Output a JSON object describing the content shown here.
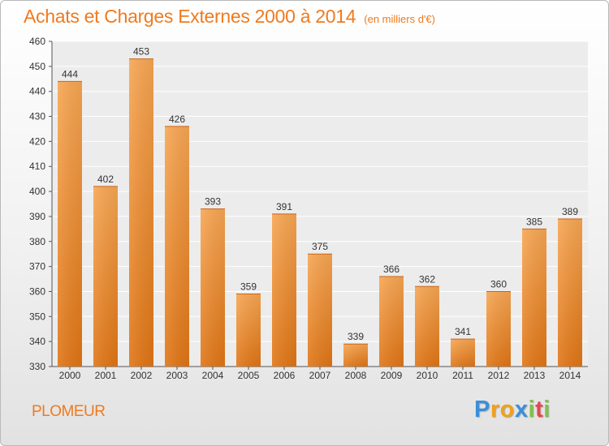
{
  "header": {
    "title": "Achats et Charges Externes 2000 à 2014",
    "subtitle": "(en milliers d'€)"
  },
  "footer": {
    "commune": "PLOMEUR",
    "logo": {
      "letters": [
        "P",
        "r",
        "o",
        "x",
        "i",
        "t",
        "i"
      ]
    }
  },
  "colors": {
    "accent": "#f07a1e",
    "bar_light": "#f7a653",
    "bar_dark": "#e07515",
    "logo": [
      "#3a8fd8",
      "#f0a01e",
      "#f0a01e",
      "#3a8fd8",
      "#7ec242",
      "#e8454e",
      "#7ec242"
    ]
  },
  "chart_data": {
    "type": "bar",
    "title": "Achats et Charges Externes 2000 à 2014",
    "subtitle": "(en milliers d'€)",
    "xlabel": "",
    "ylabel": "",
    "categories": [
      "2000",
      "2001",
      "2002",
      "2003",
      "2004",
      "2005",
      "2006",
      "2007",
      "2008",
      "2009",
      "2010",
      "2011",
      "2012",
      "2013",
      "2014"
    ],
    "values": [
      444,
      402,
      453,
      426,
      393,
      359,
      391,
      375,
      339,
      366,
      362,
      341,
      360,
      385,
      389
    ],
    "ylim": [
      330,
      460
    ],
    "yticks": [
      330,
      340,
      350,
      360,
      370,
      380,
      390,
      400,
      410,
      420,
      430,
      440,
      450,
      460
    ],
    "grid": true,
    "legend": "none"
  }
}
